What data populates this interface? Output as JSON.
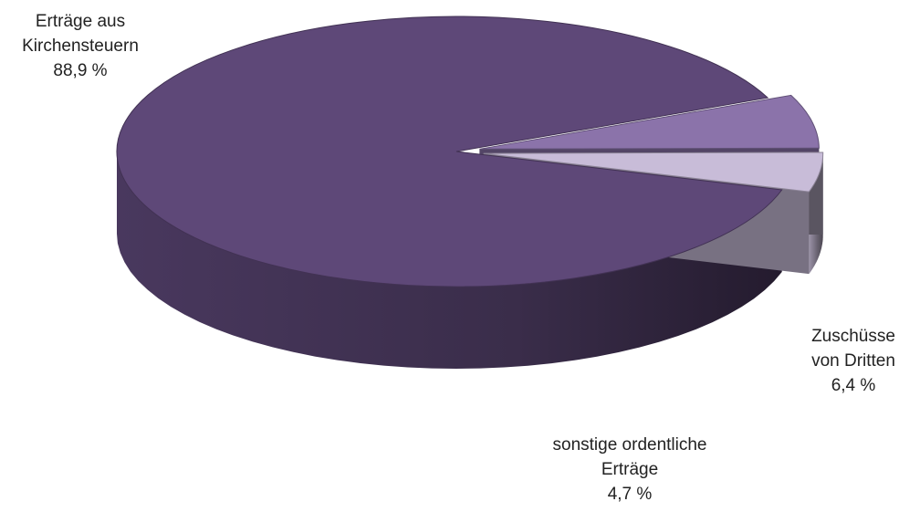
{
  "chart_data": {
    "type": "pie",
    "style": "3d-exploded",
    "slices": [
      {
        "label_lines": [
          "Erträge aus",
          "Kirchensteuern"
        ],
        "value": 88.9,
        "value_label": "88,9 %",
        "color": "#5e4878"
      },
      {
        "label_lines": [
          "Zuschüsse",
          "von Dritten"
        ],
        "value": 6.4,
        "value_label": "6,4 %",
        "color": "#8b73aa"
      },
      {
        "label_lines": [
          "sonstige ordentliche",
          "Erträge"
        ],
        "value": 4.7,
        "value_label": "4,7 %",
        "color": "#c8bcd8"
      }
    ]
  }
}
